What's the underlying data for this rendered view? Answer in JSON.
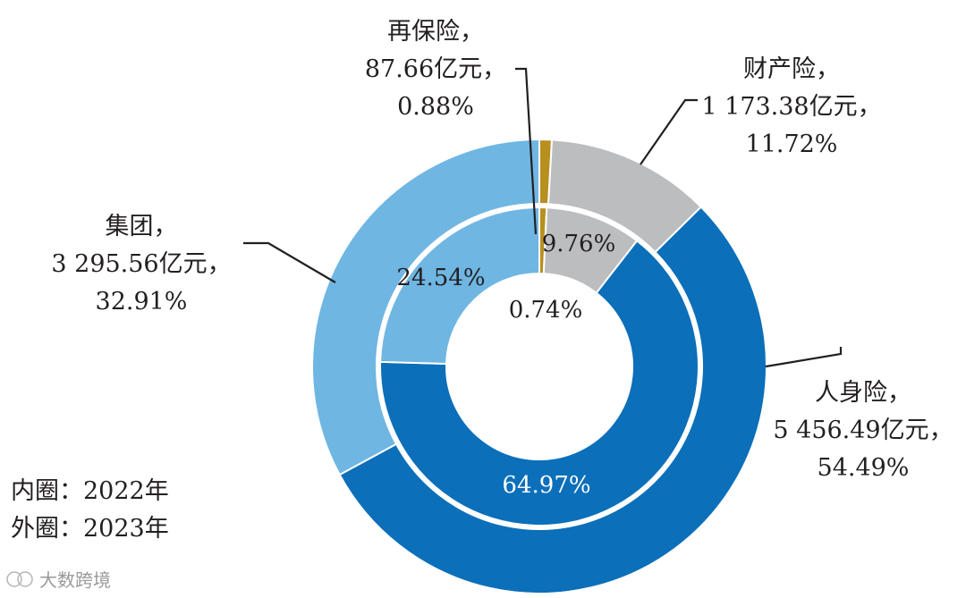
{
  "chart_data": {
    "type": "donut",
    "rings": [
      {
        "legend": "内圈：2022年",
        "values": [
          {
            "category": "再保险",
            "percent": 0.74,
            "label": "0.74%"
          },
          {
            "category": "财产险",
            "percent": 9.76,
            "label": "9.76%"
          },
          {
            "category": "人身险",
            "percent": 64.97,
            "label": "64.97%"
          },
          {
            "category": "集团",
            "percent": 24.54,
            "label": "24.54%"
          }
        ]
      },
      {
        "legend": "外圈：2023年",
        "values": [
          {
            "category": "再保险",
            "percent": 0.88,
            "amount": 87.66,
            "label_lines": [
              "再保险，",
              "87.66亿元，",
              "0.88%"
            ]
          },
          {
            "category": "财产险",
            "percent": 11.72,
            "amount": 1173.38,
            "label_lines": [
              "财产险，",
              "1 173.38亿元，",
              "11.72%"
            ]
          },
          {
            "category": "人身险",
            "percent": 54.49,
            "amount": 5456.49,
            "label_lines": [
              "人身险，",
              "5 456.49亿元，",
              "54.49%"
            ]
          },
          {
            "category": "集团",
            "percent": 32.91,
            "amount": 3295.56,
            "label_lines": [
              "集团，",
              "3 295.56亿元，",
              "32.91%"
            ]
          }
        ]
      }
    ],
    "colors": {
      "再保险": "#b8901f",
      "财产险": "#bcbdbf",
      "人身险": "#0b6fba",
      "集团": "#6fb6e3"
    },
    "unit": "亿元"
  },
  "watermark": "大数跨境"
}
